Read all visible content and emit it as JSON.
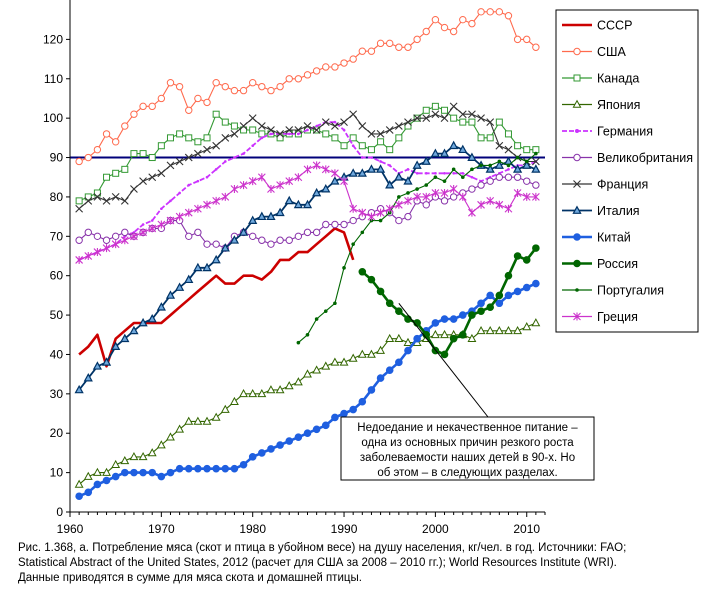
{
  "chart_data": {
    "type": "line",
    "title": "",
    "xlabel": "",
    "ylabel": "",
    "xlim": [
      1960,
      2012
    ],
    "ylim": [
      0,
      130
    ],
    "x_ticks": [
      "1960",
      "1970",
      "1980",
      "1990",
      "2000",
      "2010"
    ],
    "y_ticks": [
      "0",
      "10",
      "20",
      "30",
      "40",
      "50",
      "60",
      "70",
      "80",
      "90",
      "100",
      "110",
      "120"
    ],
    "reference_line": {
      "y": 90,
      "color": "#00007a"
    },
    "grid": false,
    "legend_position": "right",
    "annotation": {
      "lines": [
        "Недоедание и некачественное питание –",
        "одна из основных причин  резкого роста",
        "заболеваемости наших детей в   90-х. Но",
        "об этом – в следующих разделах."
      ],
      "target_x": 1996,
      "target_y": 53
    },
    "series": [
      {
        "name": "СССР",
        "color": "#cc0000",
        "marker": "none",
        "x": [
          1961,
          1962,
          1963,
          1964,
          1965,
          1966,
          1967,
          1968,
          1969,
          1970,
          1971,
          1972,
          1973,
          1974,
          1975,
          1976,
          1977,
          1978,
          1979,
          1980,
          1981,
          1982,
          1983,
          1984,
          1985,
          1986,
          1987,
          1988,
          1989,
          1990,
          1991
        ],
        "y": [
          40,
          42,
          45,
          37,
          44,
          46,
          48,
          48,
          48,
          48,
          50,
          52,
          54,
          56,
          58,
          60,
          58,
          58,
          60,
          60,
          59,
          61,
          64,
          64,
          66,
          66,
          68,
          70,
          72,
          71,
          64
        ]
      },
      {
        "name": "США",
        "color": "#ff6a4d",
        "marker": "circle-open",
        "x": [
          1961,
          1962,
          1963,
          1964,
          1965,
          1966,
          1967,
          1968,
          1969,
          1970,
          1971,
          1972,
          1973,
          1974,
          1975,
          1976,
          1977,
          1978,
          1979,
          1980,
          1981,
          1982,
          1983,
          1984,
          1985,
          1986,
          1987,
          1988,
          1989,
          1990,
          1991,
          1992,
          1993,
          1994,
          1995,
          1996,
          1997,
          1998,
          1999,
          2000,
          2001,
          2002,
          2003,
          2004,
          2005,
          2006,
          2007,
          2008,
          2009,
          2010,
          2011
        ],
        "y": [
          89,
          90,
          92,
          96,
          94,
          98,
          101,
          103,
          103,
          105,
          109,
          108,
          102,
          105,
          104,
          109,
          108,
          107,
          107,
          109,
          108,
          107,
          108,
          110,
          110,
          111,
          112,
          113,
          113,
          114,
          115,
          117,
          117,
          119,
          119,
          118,
          118,
          120,
          122,
          125,
          123,
          122,
          125,
          124,
          127,
          127,
          127,
          126,
          120,
          120,
          118
        ]
      },
      {
        "name": "Канада",
        "color": "#339933",
        "marker": "square-open",
        "x": [
          1961,
          1962,
          1963,
          1964,
          1965,
          1966,
          1967,
          1968,
          1969,
          1970,
          1971,
          1972,
          1973,
          1974,
          1975,
          1976,
          1977,
          1978,
          1979,
          1980,
          1981,
          1982,
          1983,
          1984,
          1985,
          1986,
          1987,
          1988,
          1989,
          1990,
          1991,
          1992,
          1993,
          1994,
          1995,
          1996,
          1997,
          1998,
          1999,
          2000,
          2001,
          2002,
          2003,
          2004,
          2005,
          2006,
          2007,
          2008,
          2009,
          2010,
          2011
        ],
        "y": [
          79,
          80,
          81,
          85,
          86,
          87,
          91,
          91,
          90,
          93,
          95,
          96,
          95,
          94,
          95,
          101,
          99,
          98,
          97,
          97,
          96,
          96,
          95,
          96,
          96,
          97,
          97,
          96,
          95,
          93,
          95,
          93,
          92,
          94,
          92,
          95,
          98,
          100,
          102,
          103,
          102,
          100,
          99,
          99,
          95,
          95,
          99,
          96,
          93,
          92,
          92
        ]
      },
      {
        "name": "Япония",
        "color": "#336600",
        "marker": "triangle-open",
        "x": [
          1961,
          1962,
          1963,
          1964,
          1965,
          1966,
          1967,
          1968,
          1969,
          1970,
          1971,
          1972,
          1973,
          1974,
          1975,
          1976,
          1977,
          1978,
          1979,
          1980,
          1981,
          1982,
          1983,
          1984,
          1985,
          1986,
          1987,
          1988,
          1989,
          1990,
          1991,
          1992,
          1993,
          1994,
          1995,
          1996,
          1997,
          1998,
          1999,
          2000,
          2001,
          2002,
          2003,
          2004,
          2005,
          2006,
          2007,
          2008,
          2009,
          2010,
          2011
        ],
        "y": [
          7,
          9,
          10,
          10,
          12,
          13,
          14,
          14,
          15,
          17,
          19,
          21,
          23,
          23,
          23,
          24,
          26,
          28,
          30,
          30,
          30,
          31,
          31,
          32,
          33,
          35,
          36,
          37,
          38,
          38,
          39,
          40,
          40,
          41,
          44,
          44,
          43,
          43,
          44,
          45,
          45,
          45,
          45,
          44,
          46,
          46,
          46,
          46,
          46,
          47,
          48
        ]
      },
      {
        "name": "Германия",
        "color": "#cc33ff",
        "marker": "none",
        "x": [
          1961,
          1962,
          1963,
          1964,
          1965,
          1966,
          1967,
          1968,
          1969,
          1970,
          1971,
          1972,
          1973,
          1974,
          1975,
          1976,
          1977,
          1978,
          1979,
          1980,
          1981,
          1982,
          1983,
          1984,
          1985,
          1986,
          1987,
          1988,
          1989,
          1990,
          1991,
          1992,
          1993,
          1994,
          1995,
          1996,
          1997,
          1998,
          1999,
          2000,
          2001,
          2002,
          2003,
          2004,
          2005,
          2006,
          2007,
          2008,
          2009,
          2010,
          2011
        ],
        "y": [
          64,
          65,
          66,
          67,
          68,
          70,
          71,
          73,
          74,
          77,
          79,
          81,
          83,
          84,
          85,
          87,
          89,
          90,
          91,
          93,
          95,
          96,
          96,
          96,
          96,
          97,
          98,
          99,
          99,
          97,
          93,
          90,
          90,
          89,
          88,
          86,
          87,
          86,
          86,
          86,
          86,
          86,
          86,
          85,
          84,
          85,
          86,
          87,
          88,
          88,
          89
        ]
      },
      {
        "name": "Великобритания",
        "color": "#8833aa",
        "marker": "circle-open",
        "x": [
          1961,
          1962,
          1963,
          1964,
          1965,
          1966,
          1967,
          1968,
          1969,
          1970,
          1971,
          1972,
          1973,
          1974,
          1975,
          1976,
          1977,
          1978,
          1979,
          1980,
          1981,
          1982,
          1983,
          1984,
          1985,
          1986,
          1987,
          1988,
          1989,
          1990,
          1991,
          1992,
          1993,
          1994,
          1995,
          1996,
          1997,
          1998,
          1999,
          2000,
          2001,
          2002,
          2003,
          2004,
          2005,
          2006,
          2007,
          2008,
          2009,
          2010,
          2011
        ],
        "y": [
          69,
          71,
          70,
          69,
          70,
          71,
          70,
          71,
          72,
          72,
          74,
          74,
          70,
          71,
          68,
          68,
          67,
          70,
          71,
          70,
          69,
          68,
          69,
          69,
          70,
          71,
          71,
          73,
          73,
          73,
          74,
          75,
          76,
          77,
          76,
          74,
          75,
          79,
          78,
          80,
          79,
          80,
          81,
          82,
          83,
          84,
          85,
          85,
          85,
          84,
          83
        ]
      },
      {
        "name": "Франция",
        "color": "#333333",
        "marker": "x",
        "x": [
          1961,
          1962,
          1963,
          1964,
          1965,
          1966,
          1967,
          1968,
          1969,
          1970,
          1971,
          1972,
          1973,
          1974,
          1975,
          1976,
          1977,
          1978,
          1979,
          1980,
          1981,
          1982,
          1983,
          1984,
          1985,
          1986,
          1987,
          1988,
          1989,
          1990,
          1991,
          1992,
          1993,
          1994,
          1995,
          1996,
          1997,
          1998,
          1999,
          2000,
          2001,
          2002,
          2003,
          2004,
          2005,
          2006,
          2007,
          2008,
          2009,
          2010,
          2011
        ],
        "y": [
          77,
          79,
          80,
          79,
          80,
          79,
          82,
          84,
          85,
          86,
          88,
          89,
          90,
          91,
          92,
          93,
          95,
          96,
          98,
          100,
          98,
          97,
          96,
          97,
          97,
          98,
          97,
          99,
          98,
          99,
          101,
          98,
          96,
          96,
          97,
          98,
          99,
          100,
          100,
          101,
          100,
          103,
          101,
          101,
          100,
          99,
          93,
          92,
          90,
          89,
          89
        ]
      },
      {
        "name": "Италия",
        "color": "#003366",
        "marker": "triangle-fill",
        "x": [
          1961,
          1962,
          1963,
          1964,
          1965,
          1966,
          1967,
          1968,
          1969,
          1970,
          1971,
          1972,
          1973,
          1974,
          1975,
          1976,
          1977,
          1978,
          1979,
          1980,
          1981,
          1982,
          1983,
          1984,
          1985,
          1986,
          1987,
          1988,
          1989,
          1990,
          1991,
          1992,
          1993,
          1994,
          1995,
          1996,
          1997,
          1998,
          1999,
          2000,
          2001,
          2002,
          2003,
          2004,
          2005,
          2006,
          2007,
          2008,
          2009,
          2010,
          2011
        ],
        "y": [
          31,
          34,
          37,
          38,
          42,
          44,
          46,
          48,
          49,
          52,
          55,
          57,
          59,
          62,
          62,
          64,
          67,
          69,
          71,
          74,
          75,
          75,
          76,
          79,
          78,
          78,
          81,
          82,
          84,
          85,
          86,
          86,
          87,
          87,
          83,
          85,
          84,
          88,
          89,
          91,
          91,
          93,
          92,
          90,
          88,
          87,
          88,
          89,
          87,
          88,
          87
        ]
      },
      {
        "name": "Китай",
        "color": "#1f5fe0",
        "marker": "circle-fill",
        "x": [
          1961,
          1962,
          1963,
          1964,
          1965,
          1966,
          1967,
          1968,
          1969,
          1970,
          1971,
          1972,
          1973,
          1974,
          1975,
          1976,
          1977,
          1978,
          1979,
          1980,
          1981,
          1982,
          1983,
          1984,
          1985,
          1986,
          1987,
          1988,
          1989,
          1990,
          1991,
          1992,
          1993,
          1994,
          1995,
          1996,
          1997,
          1998,
          1999,
          2000,
          2001,
          2002,
          2003,
          2004,
          2005,
          2006,
          2007,
          2008,
          2009,
          2010,
          2011
        ],
        "y": [
          4,
          5,
          7,
          8,
          9,
          10,
          10,
          10,
          10,
          9,
          10,
          11,
          11,
          11,
          11,
          11,
          11,
          11,
          12,
          14,
          15,
          16,
          17,
          18,
          19,
          20,
          21,
          22,
          24,
          25,
          26,
          28,
          31,
          34,
          36,
          38,
          41,
          44,
          46,
          48,
          49,
          49,
          50,
          51,
          53,
          55,
          53,
          55,
          56,
          57,
          58
        ]
      },
      {
        "name": "Россия",
        "color": "#006600",
        "marker": "circle-fill",
        "x": [
          1992,
          1993,
          1994,
          1995,
          1996,
          1997,
          1998,
          1999,
          2000,
          2001,
          2002,
          2003,
          2004,
          2005,
          2006,
          2007,
          2008,
          2009,
          2010,
          2011
        ],
        "y": [
          61,
          59,
          56,
          53,
          51,
          49,
          48,
          45,
          41,
          40,
          44,
          45,
          50,
          51,
          52,
          55,
          60,
          65,
          64,
          67
        ]
      },
      {
        "name": "Португалия",
        "color": "#006600",
        "marker": "dot",
        "x": [
          1985,
          1986,
          1987,
          1988,
          1989,
          1990,
          1991,
          1992,
          1993,
          1994,
          1995,
          1996,
          1997,
          1998,
          1999,
          2000,
          2001,
          2002,
          2003,
          2004,
          2005,
          2006,
          2007,
          2008,
          2009,
          2010,
          2011
        ],
        "y": [
          43,
          45,
          49,
          51,
          53,
          62,
          68,
          71,
          74,
          74,
          76,
          80,
          81,
          82,
          83,
          85,
          84,
          87,
          85,
          87,
          88,
          88,
          89,
          88,
          90,
          89,
          91
        ]
      },
      {
        "name": "Греция",
        "color": "#cc33cc",
        "marker": "star",
        "x": [
          1961,
          1962,
          1963,
          1964,
          1965,
          1966,
          1967,
          1968,
          1969,
          1970,
          1971,
          1972,
          1973,
          1974,
          1975,
          1976,
          1977,
          1978,
          1979,
          1980,
          1981,
          1982,
          1983,
          1984,
          1985,
          1986,
          1987,
          1988,
          1989,
          1990,
          1991,
          1992,
          1993,
          1994,
          1995,
          1996,
          1997,
          1998,
          1999,
          2000,
          2001,
          2002,
          2003,
          2004,
          2005,
          2006,
          2007,
          2008,
          2009,
          2010,
          2011
        ],
        "y": [
          64,
          65,
          66,
          67,
          68,
          69,
          70,
          71,
          72,
          73,
          74,
          75,
          76,
          77,
          78,
          79,
          80,
          82,
          83,
          84,
          85,
          82,
          83,
          84,
          85,
          87,
          88,
          87,
          86,
          84,
          77,
          76,
          75,
          76,
          77,
          78,
          79,
          80,
          80,
          81,
          81,
          82,
          80,
          76,
          78,
          79,
          78,
          77,
          81,
          80,
          80
        ]
      }
    ]
  },
  "caption": {
    "line1": "Рис.    1.368, а. Потребление мяса (скот и птица в убойном весе) на душу населения, кг/чел. в год. Источники: FAO;",
    "line2": "Statistical Abstract of the United States, 2012 (расчет для США за 2008 – 2010 гг.); World Resources Institute (WRI).",
    "line3": "Данные приводятся в сумме для мяса скота и домашней птицы."
  }
}
